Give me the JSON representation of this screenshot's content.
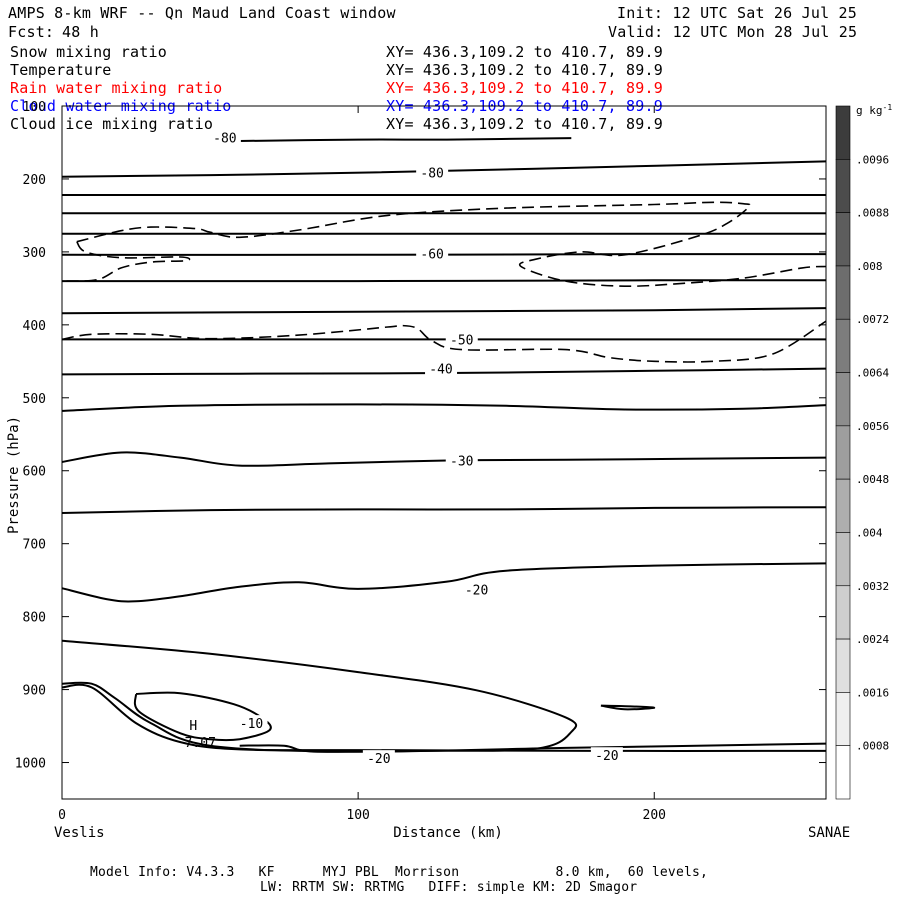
{
  "header": {
    "title": "AMPS 8-km WRF -- Qn Maud Land Coast window",
    "fcst_label": "Fcst:",
    "fcst_value": "48 h",
    "init": "Init: 12 UTC Sat 26 Jul 25",
    "valid": "Valid: 12 UTC Mon 28 Jul 25"
  },
  "fields": [
    {
      "name": "Snow mixing ratio",
      "xy": "XY= 436.3,109.2 to 410.7, 89.9",
      "color": "#000000"
    },
    {
      "name": "Temperature",
      "xy": "XY= 436.3,109.2 to 410.7, 89.9",
      "color": "#000000"
    },
    {
      "name": "Rain water mixing ratio",
      "xy": "XY= 436.3,109.2 to 410.7, 89.9",
      "color": "#ff0000"
    },
    {
      "name": "Cloud water mixing ratio",
      "xy": "XY= 436.3,109.2 to 410.7, 89.9",
      "color": "#0000ff"
    },
    {
      "name": "Cloud ice mixing ratio",
      "xy": "XY= 436.3,109.2 to 410.7, 89.9",
      "color": "#000000"
    }
  ],
  "footer": {
    "line1": "Model Info: V4.3.3   KF      MYJ PBL  Morrison            8.0 km,  60 levels,",
    "line2": "LW: RRTM SW: RRTMG   DIFF: simple KM: 2D Smagor"
  },
  "chart_data": {
    "type": "line",
    "xlabel": "Distance (km)",
    "ylabel": "Pressure (hPa)",
    "x_start_label": "Veslis",
    "x_end_label": "SANAE",
    "xlim": [
      0,
      258
    ],
    "ylim": [
      1050,
      100
    ],
    "x_ticks": [
      0,
      100,
      200
    ],
    "y_ticks": [
      100,
      200,
      300,
      400,
      500,
      600,
      700,
      800,
      900,
      1000
    ],
    "colorbar": {
      "unit": "g kg",
      "unit_exp": "-1",
      "ticks": [
        ".0096",
        ".0088",
        ".008",
        ".0072",
        ".0064",
        ".0056",
        ".0048",
        ".004",
        ".0032",
        ".0024",
        ".0016",
        ".0008"
      ]
    },
    "temperature_contour_labels": [
      {
        "text": "-80",
        "x": 55,
        "p": 143
      },
      {
        "text": "-80",
        "x": 125,
        "p": 191
      },
      {
        "text": "-60",
        "x": 125,
        "p": 302
      },
      {
        "text": "-50",
        "x": 135,
        "p": 420
      },
      {
        "text": "-40",
        "x": 128,
        "p": 460
      },
      {
        "text": "-30",
        "x": 135,
        "p": 586
      },
      {
        "text": "-20",
        "x": 140,
        "p": 763
      },
      {
        "text": "-10",
        "x": 64,
        "p": 946
      },
      {
        "text": "-20",
        "x": 107,
        "p": 994
      },
      {
        "text": "-20",
        "x": 184,
        "p": 990
      }
    ],
    "h_marker": {
      "text": "H",
      "value": "7.07",
      "x": 45,
      "p": 957
    },
    "temperature_contours": [
      [
        [
          60,
          148
        ],
        [
          100,
          146
        ],
        [
          130,
          146
        ],
        [
          172,
          144
        ]
      ],
      [
        [
          0,
          197
        ],
        [
          80,
          193
        ],
        [
          160,
          186
        ],
        [
          258,
          176
        ]
      ],
      [
        [
          0,
          222
        ],
        [
          100,
          222
        ],
        [
          200,
          222
        ],
        [
          258,
          222
        ]
      ],
      [
        [
          0,
          247
        ],
        [
          100,
          247
        ],
        [
          200,
          247
        ],
        [
          258,
          247
        ]
      ],
      [
        [
          0,
          275
        ],
        [
          100,
          275
        ],
        [
          200,
          275
        ],
        [
          258,
          275
        ]
      ],
      [
        [
          0,
          304
        ],
        [
          100,
          304
        ],
        [
          200,
          303
        ],
        [
          258,
          303
        ]
      ],
      [
        [
          0,
          340
        ],
        [
          100,
          340
        ],
        [
          200,
          339
        ],
        [
          258,
          339
        ]
      ],
      [
        [
          0,
          384
        ],
        [
          100,
          382
        ],
        [
          200,
          380
        ],
        [
          258,
          377
        ]
      ],
      [
        [
          0,
          420
        ],
        [
          100,
          420
        ],
        [
          200,
          420
        ],
        [
          258,
          420
        ]
      ],
      [
        [
          0,
          468
        ],
        [
          60,
          467
        ],
        [
          130,
          466
        ],
        [
          200,
          463
        ],
        [
          258,
          460
        ]
      ],
      [
        [
          0,
          518
        ],
        [
          40,
          511
        ],
        [
          100,
          509
        ],
        [
          150,
          511
        ],
        [
          190,
          516
        ],
        [
          230,
          515
        ],
        [
          258,
          510
        ]
      ],
      [
        [
          0,
          588
        ],
        [
          20,
          575
        ],
        [
          40,
          582
        ],
        [
          60,
          593
        ],
        [
          90,
          590
        ],
        [
          130,
          586
        ],
        [
          170,
          585
        ],
        [
          258,
          582
        ]
      ],
      [
        [
          0,
          658
        ],
        [
          50,
          654
        ],
        [
          100,
          653
        ],
        [
          150,
          653
        ],
        [
          200,
          651
        ],
        [
          258,
          650
        ]
      ],
      [
        [
          0,
          761
        ],
        [
          15,
          776
        ],
        [
          25,
          779
        ],
        [
          40,
          772
        ],
        [
          60,
          759
        ],
        [
          80,
          753
        ],
        [
          100,
          762
        ],
        [
          130,
          752
        ],
        [
          150,
          737
        ],
        [
          200,
          730
        ],
        [
          258,
          727
        ]
      ],
      [
        [
          0,
          833
        ],
        [
          50,
          851
        ],
        [
          100,
          876
        ],
        [
          140,
          901
        ],
        [
          170,
          938
        ],
        [
          172,
          958
        ],
        [
          160,
          981
        ],
        [
          120,
          984
        ],
        [
          85,
          985
        ],
        [
          75,
          977
        ],
        [
          60,
          977
        ]
      ],
      [
        [
          0,
          892
        ],
        [
          10,
          892
        ],
        [
          18,
          912
        ],
        [
          30,
          946
        ],
        [
          50,
          977
        ],
        [
          100,
          985
        ],
        [
          170,
          980
        ],
        [
          258,
          974
        ]
      ],
      [
        [
          0,
          897
        ],
        [
          10,
          897
        ],
        [
          25,
          946
        ],
        [
          40,
          972
        ],
        [
          60,
          982
        ],
        [
          100,
          983
        ],
        [
          180,
          984
        ],
        [
          258,
          984
        ]
      ],
      [
        [
          25,
          906
        ],
        [
          40,
          905
        ],
        [
          58,
          920
        ],
        [
          68,
          940
        ],
        [
          70,
          956
        ],
        [
          60,
          968
        ],
        [
          50,
          968
        ],
        [
          40,
          960
        ],
        [
          26,
          930
        ],
        [
          25,
          906
        ]
      ],
      [
        [
          182,
          922
        ],
        [
          192,
          923
        ],
        [
          200,
          925
        ],
        [
          190,
          927
        ],
        [
          182,
          922
        ]
      ]
    ],
    "cloud_ice_dashed_contours": [
      [
        [
          5,
          286
        ],
        [
          20,
          271
        ],
        [
          30,
          266
        ],
        [
          45,
          268
        ],
        [
          50,
          273
        ],
        [
          60,
          280
        ],
        [
          80,
          270
        ],
        [
          110,
          250
        ],
        [
          150,
          240
        ],
        [
          200,
          235
        ],
        [
          220,
          232
        ],
        [
          230,
          234
        ],
        [
          232,
          238
        ],
        [
          225,
          260
        ],
        [
          215,
          278
        ],
        [
          190,
          304
        ],
        [
          175,
          300
        ],
        [
          160,
          310
        ],
        [
          155,
          320
        ],
        [
          170,
          340
        ],
        [
          190,
          347
        ],
        [
          210,
          343
        ],
        [
          230,
          336
        ],
        [
          250,
          322
        ],
        [
          258,
          320
        ]
      ],
      [
        [
          5,
          286
        ],
        [
          8,
          300
        ],
        [
          20,
          308
        ],
        [
          40,
          307
        ],
        [
          42,
          312
        ],
        [
          30,
          314
        ],
        [
          20,
          322
        ],
        [
          12,
          338
        ],
        [
          0,
          340
        ]
      ],
      [
        [
          0,
          420
        ],
        [
          10,
          413
        ],
        [
          30,
          413
        ],
        [
          50,
          419
        ],
        [
          80,
          414
        ],
        [
          110,
          403
        ],
        [
          115,
          401
        ],
        [
          120,
          405
        ],
        [
          125,
          422
        ],
        [
          135,
          434
        ],
        [
          170,
          434
        ],
        [
          185,
          445
        ],
        [
          200,
          450
        ],
        [
          220,
          450
        ],
        [
          240,
          440
        ],
        [
          258,
          395
        ]
      ]
    ]
  }
}
